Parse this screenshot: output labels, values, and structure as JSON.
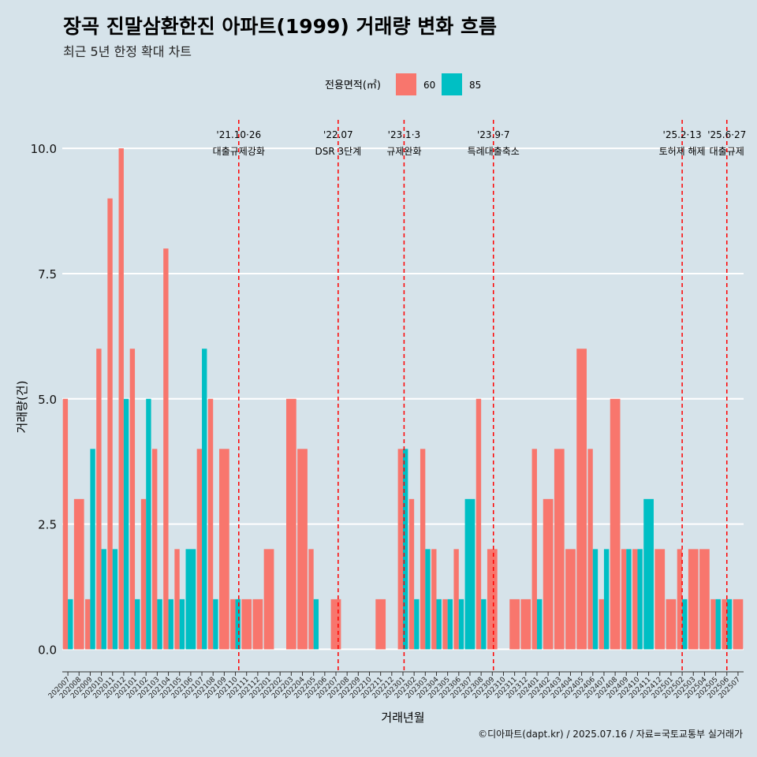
{
  "title": "장곡 진말삼환한진 아파트(1999) 거래량 변화 흐름",
  "subtitle": "최근 5년 한정 확대 차트",
  "caption": "©디아파트(dapt.kr) / 2025.07.16 / 자료=국토교통부 실거래가",
  "colors": {
    "s60": "#f8766d",
    "s85": "#00bfc4",
    "background": "#d6e3ea",
    "grid": "#ffffff",
    "event_line": "#ff0000"
  },
  "chart_data": {
    "type": "bar",
    "xlabel": "거래년월",
    "ylabel": "거래량(건)",
    "ylim": [
      -0.45,
      10.6
    ],
    "yticks": [
      0.0,
      2.5,
      5.0,
      7.5,
      10.0
    ],
    "ytick_labels": [
      "0.0",
      "2.5",
      "5.0",
      "7.5",
      "10.0"
    ],
    "legend": {
      "title": "전용면적(㎡)",
      "position": "top",
      "labels": [
        "60",
        "85"
      ]
    },
    "categories": [
      "202007",
      "202008",
      "202009",
      "202010",
      "202011",
      "202012",
      "202101",
      "202102",
      "202103",
      "202104",
      "202105",
      "202106",
      "202107",
      "202108",
      "202109",
      "202110",
      "202111",
      "202112",
      "202201",
      "202202",
      "202203",
      "202204",
      "202205",
      "202206",
      "202207",
      "202208",
      "202209",
      "202210",
      "202211",
      "202212",
      "202301",
      "202302",
      "202303",
      "202304",
      "202305",
      "202306",
      "202307",
      "202308",
      "202309",
      "202310",
      "202311",
      "202312",
      "202401",
      "202402",
      "202403",
      "202404",
      "202405",
      "202406",
      "202407",
      "202408",
      "202409",
      "202410",
      "202411",
      "202412",
      "202501",
      "202502",
      "202503",
      "202504",
      "202505",
      "202506",
      "202507"
    ],
    "series": [
      {
        "name": "60",
        "values": [
          5,
          3,
          1,
          6,
          9,
          10,
          6,
          3,
          4,
          8,
          2,
          0,
          4,
          5,
          4,
          1,
          1,
          1,
          2,
          0,
          5,
          4,
          2,
          0,
          1,
          0,
          0,
          0,
          1,
          0,
          4,
          3,
          4,
          2,
          1,
          2,
          0,
          5,
          2,
          0,
          1,
          1,
          4,
          3,
          4,
          2,
          6,
          4,
          1,
          5,
          2,
          2,
          0,
          2,
          1,
          2,
          2,
          2,
          1,
          1,
          1
        ]
      },
      {
        "name": "85",
        "values": [
          1,
          0,
          4,
          2,
          2,
          5,
          1,
          5,
          1,
          1,
          1,
          2,
          6,
          1,
          0,
          1,
          0,
          0,
          0,
          0,
          0,
          0,
          1,
          0,
          0,
          0,
          0,
          0,
          0,
          0,
          4,
          1,
          2,
          1,
          1,
          1,
          3,
          1,
          0,
          0,
          0,
          0,
          1,
          0,
          0,
          0,
          0,
          2,
          2,
          0,
          2,
          2,
          3,
          0,
          0,
          1,
          0,
          0,
          1,
          1,
          0
        ]
      }
    ],
    "events": [
      {
        "date": "'21.10·26",
        "label": "대출규제강화",
        "index": 15.3
      },
      {
        "date": "'22.07",
        "label": "DSR 3단계",
        "index": 24.2
      },
      {
        "date": "'23.1·3",
        "label": "규제완화",
        "index": 30.1
      },
      {
        "date": "'23.9·7",
        "label": "특례대출축소",
        "index": 38.1
      },
      {
        "date": "'25.2·13",
        "label": "토허제 해제",
        "index": 55.0
      },
      {
        "date": "'25.6·27",
        "label": "대출규제",
        "index": 59.0
      }
    ]
  }
}
